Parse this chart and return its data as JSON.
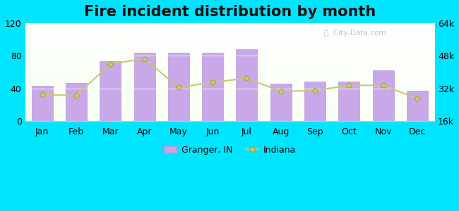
{
  "title": "Fire incident distribution by month",
  "months": [
    "Jan",
    "Feb",
    "Mar",
    "Apr",
    "May",
    "Jun",
    "Jul",
    "Aug",
    "Sep",
    "Oct",
    "Nov",
    "Dec"
  ],
  "granger_values": [
    43,
    47,
    73,
    84,
    84,
    84,
    88,
    46,
    48,
    48,
    62,
    37
  ],
  "indiana_values": [
    29000,
    28500,
    44000,
    46500,
    32500,
    35000,
    37000,
    30500,
    31000,
    33500,
    33500,
    27000
  ],
  "bar_color": "#c8a8e8",
  "bar_edge_color": "#b898d8",
  "line_color": "#c8c870",
  "line_marker_facecolor": "#c8c870",
  "line_marker_edgecolor": "#a8a840",
  "outer_bg": "#00e5ff",
  "ylim_left": [
    0,
    120
  ],
  "ylim_right": [
    16000,
    64000
  ],
  "yticks_left": [
    0,
    40,
    80,
    120
  ],
  "yticks_right": [
    16000,
    32000,
    48000,
    64000
  ],
  "title_fontsize": 15,
  "tick_fontsize": 9,
  "legend_granger": "Granger, IN",
  "legend_indiana": "Indiana",
  "watermark": "City-Data.com"
}
